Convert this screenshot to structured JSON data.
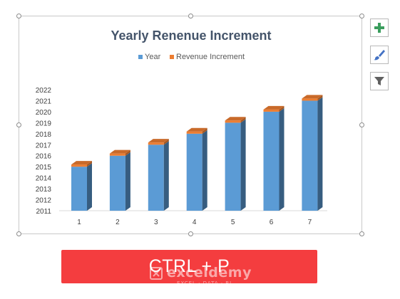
{
  "chart_data": {
    "type": "bar",
    "variant": "stacked-3d-column",
    "title": "Yearly Renenue Increment",
    "legend_position": "top",
    "categories": [
      "1",
      "2",
      "3",
      "4",
      "5",
      "6",
      "7"
    ],
    "series": [
      {
        "name": "Year",
        "values": [
          2015,
          2016,
          2017,
          2018,
          2019,
          2020,
          2021
        ],
        "color": "#5b9bd5"
      },
      {
        "name": "Revenue Increment",
        "values": [
          0.2,
          0.2,
          0.2,
          0.2,
          0.2,
          0.2,
          0.2
        ],
        "color": "#ed7d31"
      }
    ],
    "y_ticks": [
      "2011",
      "2012",
      "2013",
      "2014",
      "2015",
      "2016",
      "2017",
      "2018",
      "2019",
      "2020",
      "2021",
      "2022"
    ],
    "ylim": [
      2011,
      2022
    ],
    "grid": false
  },
  "side_buttons": [
    {
      "icon": "plus-icon",
      "color": "#3a9d5d"
    },
    {
      "icon": "brush-icon",
      "color": "#4472c4"
    },
    {
      "icon": "filter-icon",
      "color": "#606060"
    }
  ],
  "shortcut_button": {
    "label": "CTRL + P"
  },
  "watermark": {
    "name": "exceldemy",
    "tagline": "EXCEL · DATA · BI"
  }
}
